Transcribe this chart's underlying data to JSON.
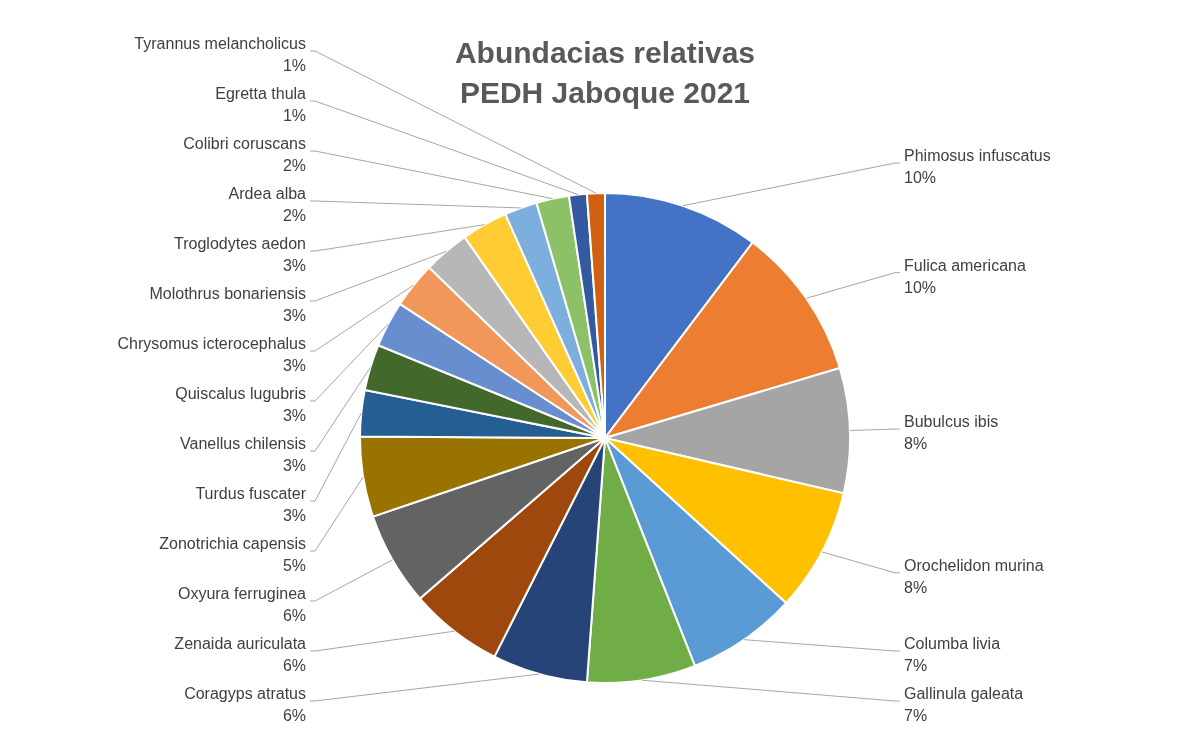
{
  "chart_data": {
    "type": "pie",
    "title": "Abundacias relativas\nPEDH Jaboque 2021",
    "categories": [
      "Phimosus infuscatus",
      "Fulica americana",
      "Bubulcus ibis",
      "Orochelidon murina",
      "Columba livia",
      "Gallinula galeata",
      "Coragyps atratus",
      "Zenaida auriculata",
      "Oxyura ferruginea",
      "Zonotrichia capensis",
      "Turdus fuscater",
      "Vanellus chilensis",
      "Quiscalus lugubris",
      "Chrysomus icterocephalus",
      "Molothrus bonariensis",
      "Troglodytes aedon",
      "Ardea alba",
      "Colibri coruscans",
      "Egretta thula",
      "Tyrannus melancholicus"
    ],
    "values": [
      10.5,
      10.3,
      8.4,
      8.3,
      7.4,
      7.3,
      6.4,
      6.3,
      6.3,
      5.4,
      3.1,
      3.1,
      3.1,
      3.1,
      3.1,
      3.1,
      2.2,
      2.2,
      1.2,
      1.2
    ],
    "value_labels": [
      "10%",
      "10%",
      "8%",
      "8%",
      "7%",
      "7%",
      "6%",
      "6%",
      "6%",
      "5%",
      "3%",
      "3%",
      "3%",
      "3%",
      "3%",
      "3%",
      "2%",
      "2%",
      "1%",
      "1%"
    ],
    "colors": [
      "#4472c4",
      "#ed7d31",
      "#a5a5a5",
      "#ffc000",
      "#5b9bd5",
      "#70ad47",
      "#264478",
      "#9e480e",
      "#636363",
      "#997300",
      "#255e91",
      "#43682b",
      "#698ed0",
      "#f1975a",
      "#b7b7b7",
      "#ffcd33",
      "#7cafdd",
      "#8cc168",
      "#335aa1",
      "#d26012"
    ]
  }
}
